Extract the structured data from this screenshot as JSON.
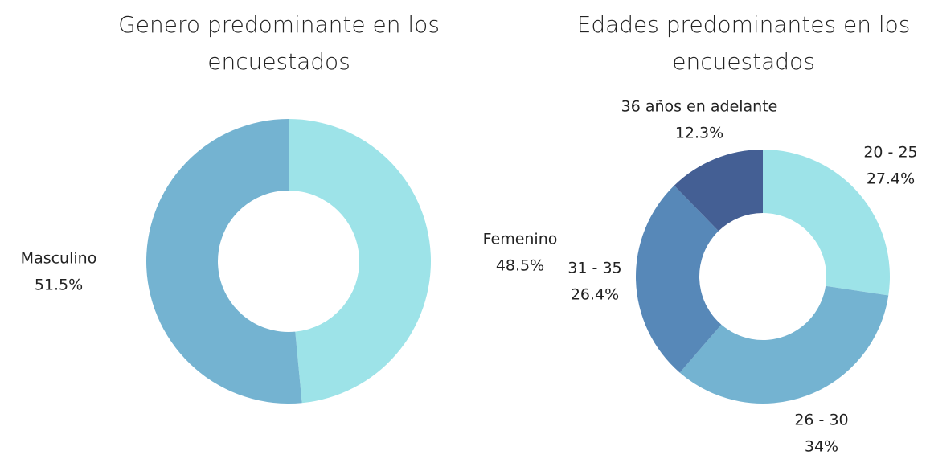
{
  "chart_data": [
    {
      "type": "pie",
      "title": "Genero predominante en los encuestados",
      "categories": [
        "Femenino",
        "Masculino"
      ],
      "values": [
        48.5,
        51.5
      ],
      "value_labels": [
        "48.5%",
        "51.5%"
      ],
      "colors": [
        "#9de3e8",
        "#74b3d1"
      ]
    },
    {
      "type": "pie",
      "title": "Edades predominantes en los encuestados",
      "categories": [
        "20 - 25",
        "26 - 30",
        "31 - 35",
        "36 años en adelante"
      ],
      "values": [
        27.4,
        34,
        26.4,
        12.3
      ],
      "value_labels": [
        "27.4%",
        "34%",
        "26.4%",
        "12.3%"
      ],
      "colors": [
        "#9de3e8",
        "#74b3d1",
        "#5788b8",
        "#445f94"
      ]
    }
  ]
}
